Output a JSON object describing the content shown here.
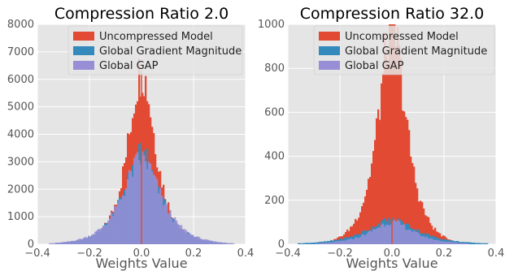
{
  "chart_data": [
    {
      "type": "bar",
      "title": "Compression Ratio 2.0",
      "xlabel": "Weights Value",
      "ylabel": "",
      "xlim": [
        -0.4,
        0.4
      ],
      "ylim": [
        0,
        8000
      ],
      "xticks": [
        "−0.4",
        "−0.2",
        "0.0",
        "0.2",
        "0.4"
      ],
      "yticks": [
        "0",
        "1000",
        "2000",
        "3000",
        "4000",
        "5000",
        "6000",
        "7000",
        "8000"
      ],
      "grid": true,
      "legend_position": "top-center",
      "series": [
        {
          "name": "Uncompressed Model",
          "color": "#e24a33",
          "peak": 6300,
          "center": 0.0,
          "sigma": 0.065
        },
        {
          "name": "Global Gradient Magnitude",
          "color": "#348abd",
          "peak": 3250,
          "center": 0.0,
          "sigma": 0.085
        },
        {
          "name": "Global GAP",
          "color": "#988ed5",
          "peak": 3100,
          "center": 0.0,
          "sigma": 0.09
        }
      ]
    },
    {
      "type": "bar",
      "title": "Compression Ratio 32.0",
      "xlabel": "Weights Value",
      "ylabel": "",
      "xlim": [
        -0.4,
        0.4
      ],
      "ylim": [
        0,
        1000
      ],
      "xticks": [
        "−0.4",
        "−0.2",
        "0.0",
        "0.2",
        "0.4"
      ],
      "yticks": [
        "0",
        "200",
        "400",
        "600",
        "800",
        "1000"
      ],
      "grid": true,
      "legend_position": "top-center",
      "series": [
        {
          "name": "Uncompressed Model",
          "color": "#e24a33",
          "peak": 1000,
          "center": 0.0,
          "sigma": 0.065
        },
        {
          "name": "Global Gradient Magnitude",
          "color": "#348abd",
          "peak": 110,
          "center": 0.0,
          "sigma": 0.12
        },
        {
          "name": "Global GAP",
          "color": "#988ed5",
          "peak": 100,
          "center": 0.0,
          "sigma": 0.1
        }
      ]
    }
  ]
}
